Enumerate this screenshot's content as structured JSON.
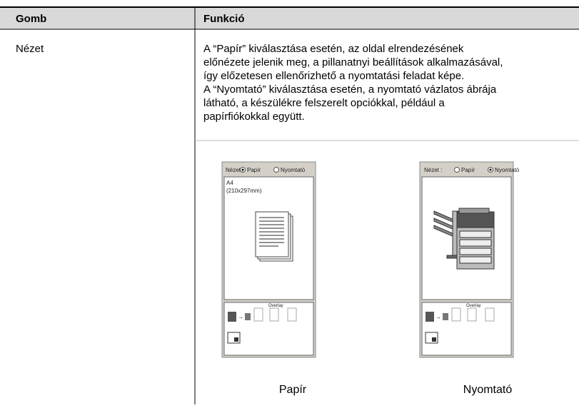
{
  "table": {
    "header": [
      "Gomb",
      "Funkció"
    ],
    "rows": [
      {
        "button": "Nézet",
        "description": [
          [
            "A “Papír” kiválasztása esetén, az oldal elrendezésének",
            "előnézete jelenik meg, a pillanatnyi beállítások alkalmazásával,",
            "így előzetesen ellenőrizhető a nyomtatási feladat képe."
          ],
          [
            "A “Nyomtató” kiválasztása esetén, a nyomtató vázlatos ábrája",
            "látható, a készülékre felszerelt opciókkal, például a",
            "papírfiókokkal együtt."
          ]
        ],
        "figures": [
          {
            "view_label": "Nézet :",
            "option_paper": "Papír",
            "option_printer": "Nyomtató",
            "paper_size": "A4",
            "paper_dims": "(210x297mm)",
            "overlay": "Overlay",
            "caption": "Papír"
          },
          {
            "view_label": "Nézet :",
            "option_paper": "Papír",
            "option_printer": "Nyomtató",
            "overlay": "Overlay",
            "caption": "Nyomtató"
          }
        ]
      }
    ]
  }
}
